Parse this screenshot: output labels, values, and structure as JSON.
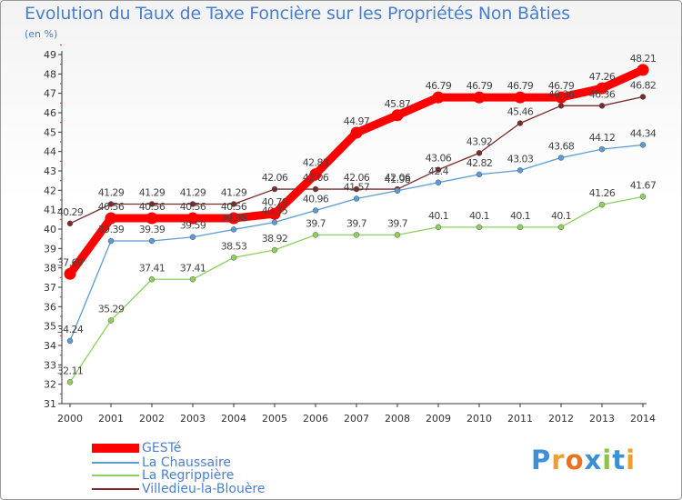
{
  "title": "Evolution du Taux de Taxe Foncière sur les Propriétés Non Bâties",
  "unit": "(en %)",
  "chart_data": {
    "type": "line",
    "title": "Evolution du Taux de Taxe Foncière sur les Propriétés Non Bâties",
    "ylabel": "(en %)",
    "xlabel": "",
    "x": [
      "2000",
      "2001",
      "2002",
      "2003",
      "2004",
      "2005",
      "2006",
      "2007",
      "2008",
      "2009",
      "2010",
      "2011",
      "2012",
      "2013",
      "2014"
    ],
    "ylim": [
      31,
      49
    ],
    "yticks": [
      "31",
      "32",
      "33",
      "34",
      "35",
      "36",
      "37",
      "38",
      "39",
      "40",
      "41",
      "42",
      "43",
      "44",
      "45",
      "46",
      "47",
      "48",
      "49"
    ],
    "series": [
      {
        "name": "GESTé",
        "color": "#ff0000",
        "values": [
          37.69,
          40.56,
          40.56,
          40.56,
          40.56,
          40.79,
          42.83,
          44.97,
          45.87,
          46.79,
          46.79,
          46.79,
          46.79,
          47.26,
          48.21
        ],
        "labels": [
          "37.69",
          "40.56",
          "40.56",
          "40.56",
          "40.56",
          "40.79",
          "42.83",
          "44.97",
          "45.87",
          "46.79",
          "46.79",
          "46.79",
          "46.79",
          "47.26",
          "48.21"
        ]
      },
      {
        "name": "La Chaussaire",
        "color": "#5b9bd5",
        "values": [
          34.24,
          39.39,
          39.39,
          39.59,
          39.98,
          40.35,
          40.96,
          41.57,
          41.98,
          42.4,
          42.82,
          43.03,
          43.68,
          44.12,
          44.34
        ],
        "labels": [
          "34.24",
          "39.39",
          "39.39",
          "39.59",
          "39.98",
          "40.35",
          "40.96",
          "41.57",
          "41.98",
          "42.4",
          "42.82",
          "43.03",
          "43.68",
          "44.12",
          "44.34"
        ]
      },
      {
        "name": "La Regrippière",
        "color": "#8ed05e",
        "values": [
          32.11,
          35.29,
          37.41,
          37.41,
          38.53,
          38.92,
          39.7,
          39.7,
          39.7,
          40.1,
          40.1,
          40.1,
          40.1,
          41.26,
          41.67
        ],
        "labels": [
          "32.11",
          "35.29",
          "37.41",
          "37.41",
          "38.53",
          "38.92",
          "39.7",
          "39.7",
          "39.7",
          "40.1",
          "40.1",
          "40.1",
          "40.1",
          "41.26",
          "41.67"
        ]
      },
      {
        "name": "Villedieu-la-Blouère",
        "color": "#7a2a2a",
        "values": [
          40.29,
          41.29,
          41.29,
          41.29,
          41.29,
          42.06,
          42.06,
          42.06,
          42.06,
          43.06,
          43.92,
          45.46,
          46.36,
          46.36,
          46.82
        ],
        "labels": [
          "40.29",
          "41.29",
          "41.29",
          "41.29",
          "41.29",
          "42.06",
          "42.06",
          "42.06",
          "42.06",
          "43.06",
          "43.92",
          "45.46",
          "46.36",
          "46.36",
          "46.82"
        ]
      }
    ],
    "grid": false,
    "legend": "bottom-left"
  },
  "logo": {
    "letters": [
      "P",
      "r",
      "o",
      "x",
      "i",
      "t",
      "i"
    ],
    "colors": [
      "#3d8fd6",
      "#f0a030",
      "#f07020",
      "#3d8fd6",
      "#8cc63f",
      "#3d8fd6",
      "#f0a030"
    ]
  }
}
